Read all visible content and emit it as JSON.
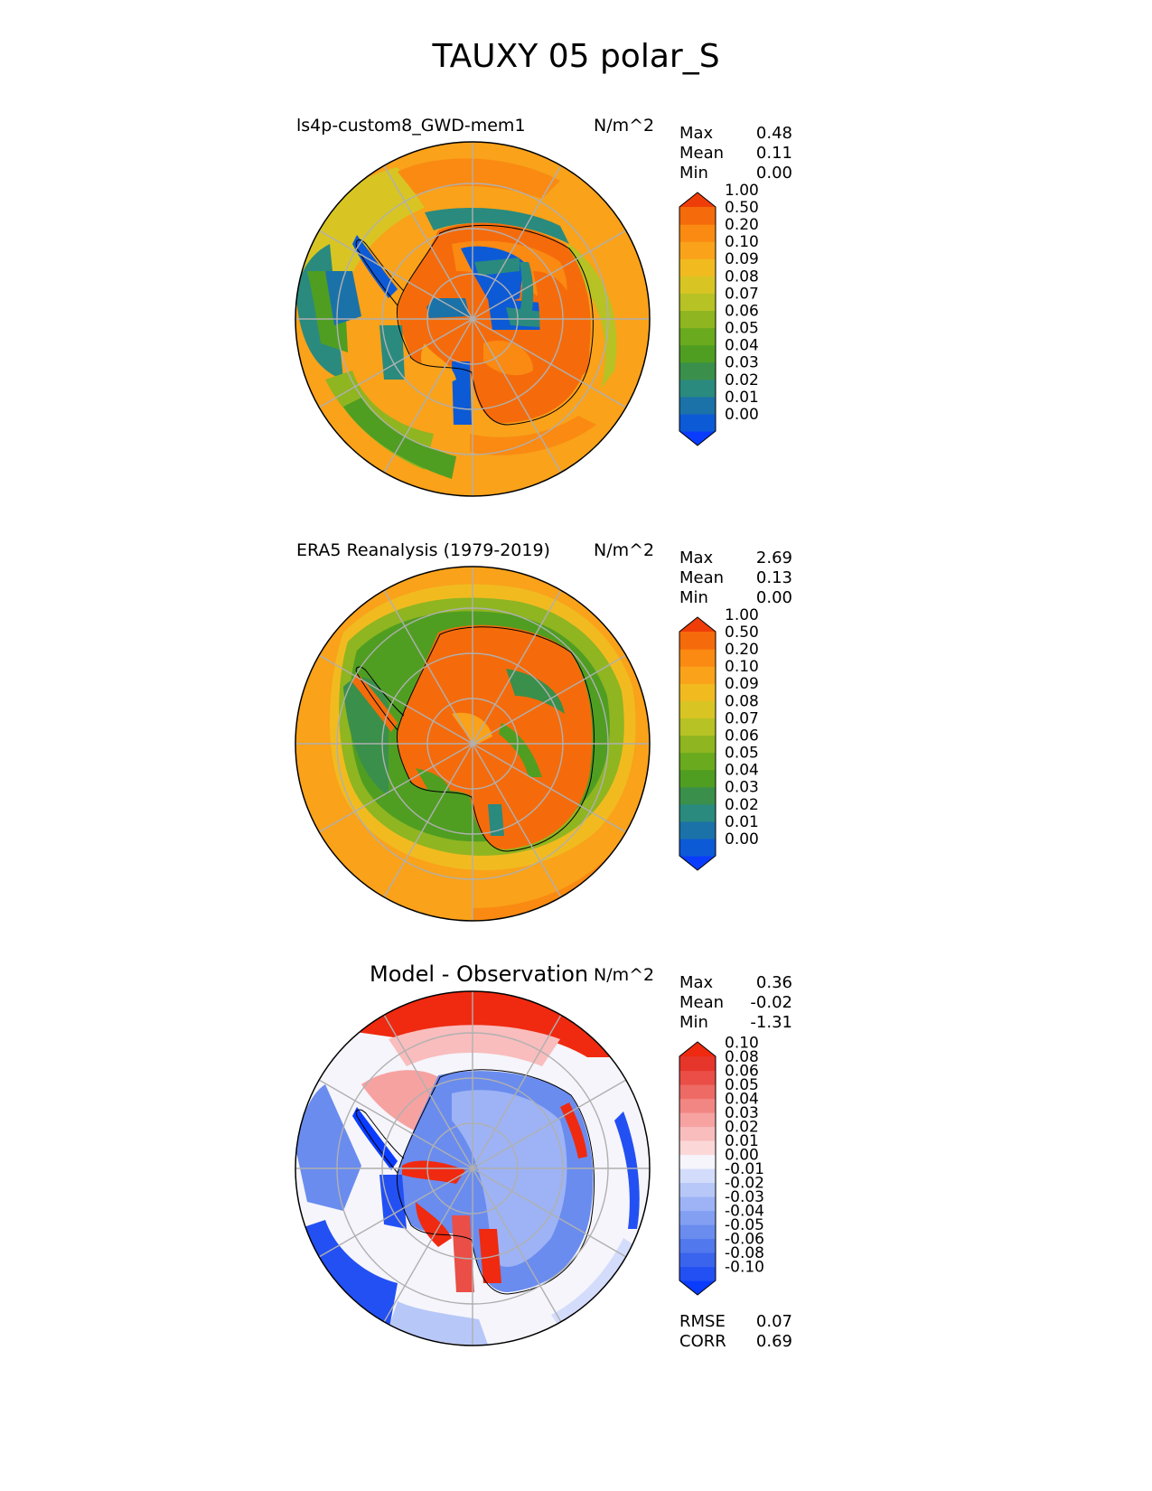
{
  "title": "TAUXY 05 polar_S",
  "panels": [
    {
      "name": "model",
      "label": "ls4p-custom8_GWD-mem1",
      "units": "N/m^2",
      "stats": [
        {
          "label": "Max",
          "value": "0.48"
        },
        {
          "label": "Mean",
          "value": "0.11"
        },
        {
          "label": "Min",
          "value": "0.00"
        }
      ]
    },
    {
      "name": "obs",
      "label": "ERA5 Reanalysis (1979-2019)",
      "units": "N/m^2",
      "stats": [
        {
          "label": "Max",
          "value": "2.69"
        },
        {
          "label": "Mean",
          "value": "0.13"
        },
        {
          "label": "Min",
          "value": "0.00"
        }
      ]
    },
    {
      "name": "diff",
      "label": "Model - Observation",
      "units": "N/m^2",
      "stats": [
        {
          "label": "Max",
          "value": "0.36"
        },
        {
          "label": "Mean",
          "value": "-0.02"
        },
        {
          "label": "Min",
          "value": "-1.31"
        }
      ],
      "extra_stats": [
        {
          "label": "RMSE",
          "value": "0.07"
        },
        {
          "label": "CORR",
          "value": "0.69"
        }
      ]
    }
  ],
  "chart_data": [
    {
      "type": "heatmap",
      "projection": "south polar stereographic",
      "title": "ls4p-custom8_GWD-mem1",
      "units": "N/m^2",
      "colorbar": {
        "levels": [
          "0.00",
          "0.01",
          "0.02",
          "0.03",
          "0.04",
          "0.05",
          "0.06",
          "0.07",
          "0.08",
          "0.09",
          "0.10",
          "0.20",
          "0.50",
          "1.00"
        ],
        "colors": [
          "#0a3cff",
          "#0d5ad6",
          "#1a72a8",
          "#2a8a7e",
          "#3a8f4a",
          "#4f9e22",
          "#6aaa1e",
          "#8fb521",
          "#b7c224",
          "#d8c524",
          "#f1bb20",
          "#f9a21a",
          "#fa8a12",
          "#f56b0b",
          "#ef3d0a"
        ]
      }
    },
    {
      "type": "heatmap",
      "projection": "south polar stereographic",
      "title": "ERA5 Reanalysis (1979-2019)",
      "units": "N/m^2",
      "colorbar": {
        "levels": [
          "0.00",
          "0.01",
          "0.02",
          "0.03",
          "0.04",
          "0.05",
          "0.06",
          "0.07",
          "0.08",
          "0.09",
          "0.10",
          "0.20",
          "0.50",
          "1.00"
        ],
        "colors": [
          "#0a3cff",
          "#0d5ad6",
          "#1a72a8",
          "#2a8a7e",
          "#3a8f4a",
          "#4f9e22",
          "#6aaa1e",
          "#8fb521",
          "#b7c224",
          "#d8c524",
          "#f1bb20",
          "#f9a21a",
          "#fa8a12",
          "#f56b0b",
          "#ef3d0a"
        ]
      }
    },
    {
      "type": "heatmap",
      "projection": "south polar stereographic",
      "title": "Model - Observation",
      "units": "N/m^2",
      "colorbar": {
        "levels": [
          "-0.10",
          "-0.08",
          "-0.06",
          "-0.05",
          "-0.04",
          "-0.03",
          "-0.02",
          "-0.01",
          "0.00",
          "0.01",
          "0.02",
          "0.03",
          "0.04",
          "0.05",
          "0.06",
          "0.08",
          "0.10"
        ],
        "colors": [
          "#0a3cff",
          "#2350f3",
          "#3a64ee",
          "#5178ec",
          "#6a8cef",
          "#839ff2",
          "#9db3f5",
          "#b7c7f8",
          "#d3dcfb",
          "#f5f5fb",
          "#fbd7d7",
          "#f9bdbd",
          "#f6a2a1",
          "#f28683",
          "#ee6a65",
          "#ea4e46",
          "#e6352a",
          "#ef2a10"
        ]
      }
    }
  ]
}
